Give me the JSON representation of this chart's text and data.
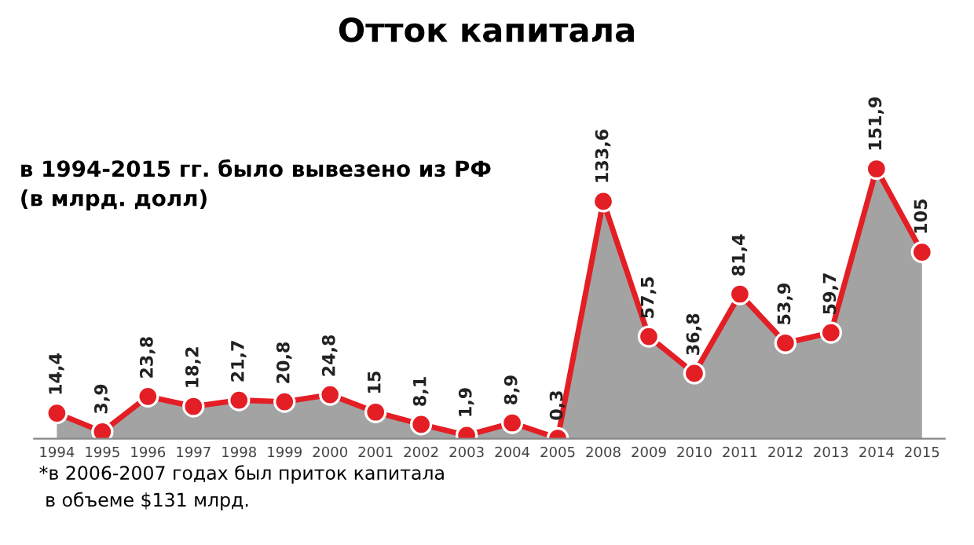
{
  "chart_data": {
    "type": "area",
    "title": "Отток капитала",
    "categories": [
      "1994",
      "1995",
      "1996",
      "1997",
      "1998",
      "1999",
      "2000",
      "2001",
      "2002",
      "2003",
      "2004",
      "2005",
      "2008",
      "2009",
      "2010",
      "2011",
      "2012",
      "2013",
      "2014",
      "2015"
    ],
    "series": [
      {
        "color": "#e31e24",
        "values": [
          14.4,
          3.9,
          23.8,
          18.2,
          21.7,
          20.8,
          24.8,
          15,
          8.1,
          1.9,
          8.9,
          0.3,
          133.6,
          57.5,
          36.8,
          81.4,
          53.9,
          59.7,
          151.9,
          105
        ],
        "value_labels": [
          "14,4",
          "3,9",
          "23,8",
          "18,2",
          "21,7",
          "20,8",
          "24,8",
          "15",
          "8,1",
          "1,9",
          "8,9",
          "0,3",
          "133,6",
          "57,5",
          "36,8",
          "81,4",
          "53,9",
          "59,7",
          "151,9",
          "105"
        ]
      }
    ],
    "tick_labels": "x",
    "marker": "circle",
    "grid": false,
    "legend": false,
    "annotations": [
      "в 1994-2015 гг. было вывезено из РФ\n(в млрд. долл)",
      "*в 2006-2007 годах был приток капитала\n в объеме $131 млрд."
    ]
  }
}
